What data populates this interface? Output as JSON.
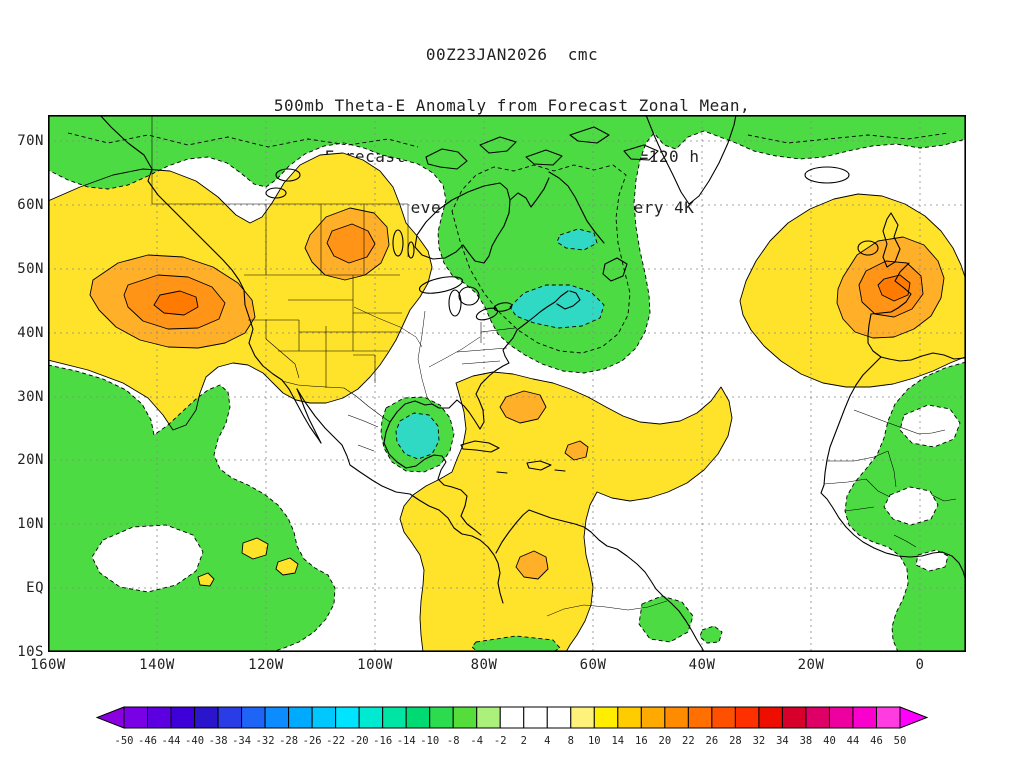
{
  "title": {
    "line1": "00Z23JAN2026  cmc",
    "line2": "500mb Theta-E Anomaly from Forecast Zonal Mean,",
    "line3": "Forecast 0-240h Time Mean (K) T=120 h",
    "line4": "Shading every 2K; Contoured every 4K"
  },
  "map": {
    "y_axis_labels": [
      "70N",
      "60N",
      "50N",
      "40N",
      "30N",
      "20N",
      "10N",
      "EQ",
      "10S"
    ],
    "x_axis_labels": [
      "160W",
      "140W",
      "120W",
      "100W",
      "80W",
      "60W",
      "40W",
      "20W",
      "0"
    ]
  },
  "colorbar": {
    "tick_labels": [
      "-50",
      "-46",
      "-44",
      "-40",
      "-38",
      "-34",
      "-32",
      "-28",
      "-26",
      "-22",
      "-20",
      "-16",
      "-14",
      "-10",
      "-8",
      "-4",
      "-2",
      "2",
      "4",
      "8",
      "10",
      "14",
      "16",
      "20",
      "22",
      "26",
      "28",
      "32",
      "34",
      "38",
      "40",
      "44",
      "46",
      "50"
    ],
    "colors": [
      "#8a00e0",
      "#7a00e6",
      "#5c00e2",
      "#3e00d8",
      "#2a14cc",
      "#2a3ce6",
      "#1e64f6",
      "#0c8cff",
      "#00aaff",
      "#00c8ff",
      "#00e4ff",
      "#00ead2",
      "#00e4a4",
      "#00da72",
      "#2adc4e",
      "#55dd3c",
      "#aaf07a",
      "#ffffff",
      "#ffffff",
      "#ffffff",
      "#fff27a",
      "#ffee00",
      "#ffcc00",
      "#ffaa00",
      "#ff8c00",
      "#ff7000",
      "#ff5000",
      "#ff3000",
      "#ee0e00",
      "#d6002a",
      "#de0066",
      "#ee00a0",
      "#fa00cc",
      "#ff3ce0",
      "#ff00ff"
    ]
  },
  "palette": {
    "yellow": "#ffe32a",
    "orange": "#ffb028",
    "orange2": "#ff9416",
    "red": "#ff7a00",
    "green": "#4ddb44",
    "cyan": "#2fd9c4",
    "text": "#222222"
  }
}
